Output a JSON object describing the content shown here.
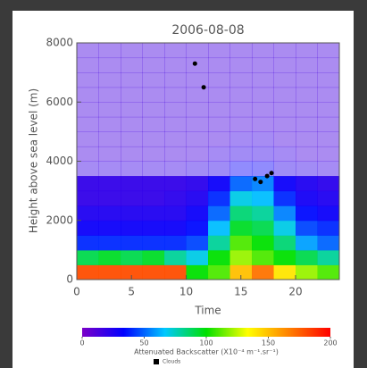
{
  "chart_data": {
    "type": "heatmap",
    "title": "2006-08-08",
    "xlabel": "Time",
    "ylabel": "Height above sea level (m)",
    "xlim": [
      0,
      24
    ],
    "ylim": [
      0,
      8000
    ],
    "xticks": [
      0,
      5,
      10,
      15,
      20
    ],
    "yticks": [
      0,
      2000,
      4000,
      6000,
      8000
    ],
    "x_edges": [
      0,
      2,
      4,
      6,
      8,
      10,
      12,
      14,
      16,
      18,
      20,
      22,
      24
    ],
    "y_edges": [
      0,
      500,
      1000,
      1500,
      2000,
      2500,
      3000,
      3500,
      4000,
      4500,
      5000,
      5500,
      6000,
      6500,
      7000,
      7500,
      8000
    ],
    "z": [
      [
        180,
        180,
        180,
        180,
        180,
        100,
        110,
        150,
        170,
        140,
        120,
        110
      ],
      [
        90,
        95,
        90,
        95,
        80,
        70,
        100,
        120,
        110,
        100,
        90,
        80
      ],
      [
        40,
        40,
        40,
        40,
        40,
        45,
        80,
        110,
        100,
        85,
        60,
        50
      ],
      [
        30,
        30,
        30,
        30,
        30,
        35,
        65,
        95,
        90,
        70,
        45,
        40
      ],
      [
        25,
        25,
        25,
        25,
        25,
        30,
        50,
        85,
        80,
        55,
        35,
        30
      ],
      [
        20,
        20,
        20,
        20,
        22,
        25,
        40,
        70,
        65,
        40,
        28,
        25
      ],
      [
        20,
        20,
        20,
        20,
        20,
        22,
        30,
        50,
        55,
        30,
        25,
        22
      ],
      [
        18,
        18,
        18,
        18,
        18,
        20,
        22,
        30,
        30,
        22,
        20,
        18
      ],
      [
        15,
        15,
        15,
        15,
        15,
        15,
        18,
        20,
        20,
        18,
        15,
        15
      ],
      [
        15,
        15,
        15,
        15,
        15,
        15,
        15,
        18,
        18,
        15,
        15,
        15
      ],
      [
        15,
        15,
        15,
        15,
        15,
        15,
        15,
        15,
        15,
        15,
        15,
        15
      ],
      [
        15,
        15,
        15,
        15,
        15,
        15,
        15,
        15,
        15,
        15,
        15,
        15
      ],
      [
        15,
        15,
        15,
        15,
        15,
        15,
        15,
        15,
        15,
        15,
        15,
        15
      ],
      [
        15,
        15,
        15,
        15,
        15,
        15,
        15,
        15,
        15,
        15,
        15,
        15
      ],
      [
        15,
        15,
        15,
        15,
        15,
        15,
        15,
        15,
        15,
        15,
        15,
        15
      ],
      [
        15,
        15,
        15,
        15,
        15,
        15,
        15,
        15,
        15,
        15,
        15,
        15
      ]
    ],
    "colorbar": {
      "label": "Attenuated Backscatter (X10⁻⁴ m⁻¹.sr⁻¹)",
      "lim": [
        0,
        200
      ],
      "ticks": [
        0,
        50,
        100,
        150,
        200
      ],
      "colors": [
        "#7b00c8",
        "#0000ff",
        "#00c8ff",
        "#00e000",
        "#ffff00",
        "#ff8000",
        "#ff0000"
      ]
    },
    "clouds": {
      "name": "Clouds",
      "color": "#000000",
      "x": [
        10.8,
        11.6,
        16.3,
        16.8,
        17.4,
        17.8
      ],
      "y": [
        7300,
        6500,
        3400,
        3300,
        3500,
        3600
      ]
    }
  }
}
